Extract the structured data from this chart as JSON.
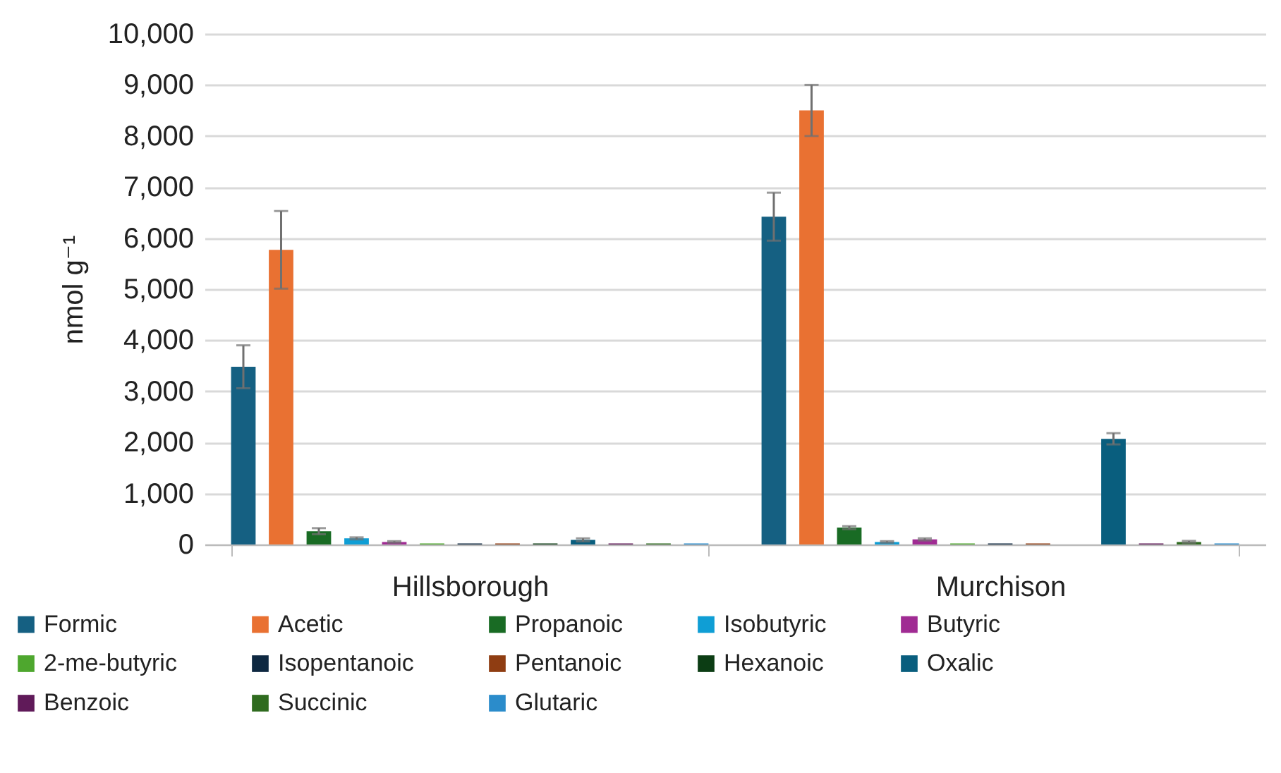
{
  "chart_data": {
    "type": "bar",
    "ylabel": "nmol g⁻¹",
    "categories": [
      "Hillsborough",
      "Murchison"
    ],
    "ylim": [
      0,
      10000
    ],
    "yticks": [
      {
        "value": 0,
        "label": "0"
      },
      {
        "value": 1000,
        "label": "1,000"
      },
      {
        "value": 2000,
        "label": "2,000"
      },
      {
        "value": 3000,
        "label": "3,000"
      },
      {
        "value": 4000,
        "label": "4,000"
      },
      {
        "value": 5000,
        "label": "5,000"
      },
      {
        "value": 6000,
        "label": "6,000"
      },
      {
        "value": 7000,
        "label": "7,000"
      },
      {
        "value": 8000,
        "label": "8,000"
      },
      {
        "value": 9000,
        "label": "9,000"
      },
      {
        "value": 10000,
        "label": "10,000"
      }
    ],
    "grid": "y",
    "legend": "bottom",
    "series": [
      {
        "name": "Formic",
        "color": "#156082",
        "values": [
          3480,
          6420
        ],
        "errors": [
          420,
          470
        ]
      },
      {
        "name": "Acetic",
        "color": "#e97132",
        "values": [
          5770,
          8500
        ],
        "errors": [
          760,
          500
        ]
      },
      {
        "name": "Propanoic",
        "color": "#196b24",
        "values": [
          260,
          330
        ],
        "errors": [
          60,
          30
        ]
      },
      {
        "name": "Isobutyric",
        "color": "#0f9ed5",
        "values": [
          120,
          50
        ],
        "errors": [
          20,
          15
        ]
      },
      {
        "name": "Butyric",
        "color": "#a02b93",
        "values": [
          50,
          100
        ],
        "errors": [
          15,
          20
        ]
      },
      {
        "name": "2-me-butyric",
        "color": "#4ea72e",
        "values": [
          20,
          20
        ],
        "errors": [
          null,
          null
        ]
      },
      {
        "name": "Isopentanoic",
        "color": "#0e2841",
        "values": [
          20,
          20
        ],
        "errors": [
          null,
          null
        ]
      },
      {
        "name": "Pentanoic",
        "color": "#8f3d12",
        "values": [
          20,
          20
        ],
        "errors": [
          null,
          null
        ]
      },
      {
        "name": "Hexanoic",
        "color": "#0c3d14",
        "values": [
          20,
          null
        ],
        "errors": [
          null,
          null
        ]
      },
      {
        "name": "Oxalic",
        "color": "#095e7e",
        "values": [
          90,
          2070
        ],
        "errors": [
          30,
          110
        ]
      },
      {
        "name": "Benzoic",
        "color": "#601a59",
        "values": [
          20,
          20
        ],
        "errors": [
          null,
          null
        ]
      },
      {
        "name": "Succinic",
        "color": "#2f6b1f",
        "values": [
          20,
          50
        ],
        "errors": [
          null,
          20
        ]
      },
      {
        "name": "Glutaric",
        "color": "#2b8ccb",
        "values": [
          20,
          20
        ],
        "errors": [
          null,
          null
        ]
      }
    ]
  }
}
